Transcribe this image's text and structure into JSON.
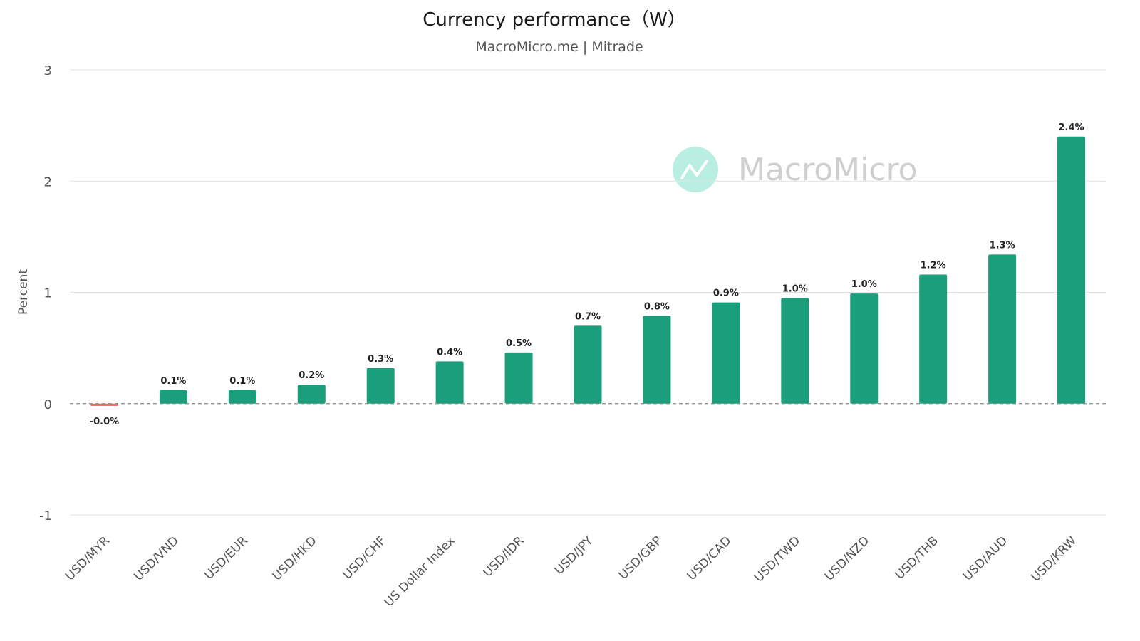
{
  "chart_data": {
    "type": "bar",
    "title": "Currency performance（W）",
    "subtitle": "MacroMicro.me | Mitrade",
    "xlabel": "",
    "ylabel": "Percent",
    "ylim": [
      -1,
      3
    ],
    "yticks": [
      3,
      2,
      1,
      0,
      -1
    ],
    "grid": true,
    "categories": [
      "USD/MYR",
      "USD/VND",
      "USD/EUR",
      "USD/HKD",
      "USD/CHF",
      "US Dollar Index",
      "USD/IDR",
      "USD/JPY",
      "USD/GBP",
      "USD/CAD",
      "USD/TWD",
      "USD/NZD",
      "USD/THB",
      "USD/AUD",
      "USD/KRW"
    ],
    "values": [
      -0.02,
      0.12,
      0.12,
      0.17,
      0.32,
      0.38,
      0.46,
      0.7,
      0.79,
      0.91,
      0.95,
      0.99,
      1.16,
      1.34,
      2.4
    ],
    "data_labels": [
      "-0.0%",
      "0.1%",
      "0.1%",
      "0.2%",
      "0.3%",
      "0.4%",
      "0.5%",
      "0.7%",
      "0.8%",
      "0.9%",
      "1.0%",
      "1.0%",
      "1.2%",
      "1.3%",
      "2.4%"
    ],
    "colors": {
      "positive": "#1a9e7c",
      "negative": "#e8676b"
    },
    "watermark": {
      "text": "MacroMicro",
      "icon": "chart-line-logo-icon",
      "color": "#7fe0cc"
    }
  }
}
